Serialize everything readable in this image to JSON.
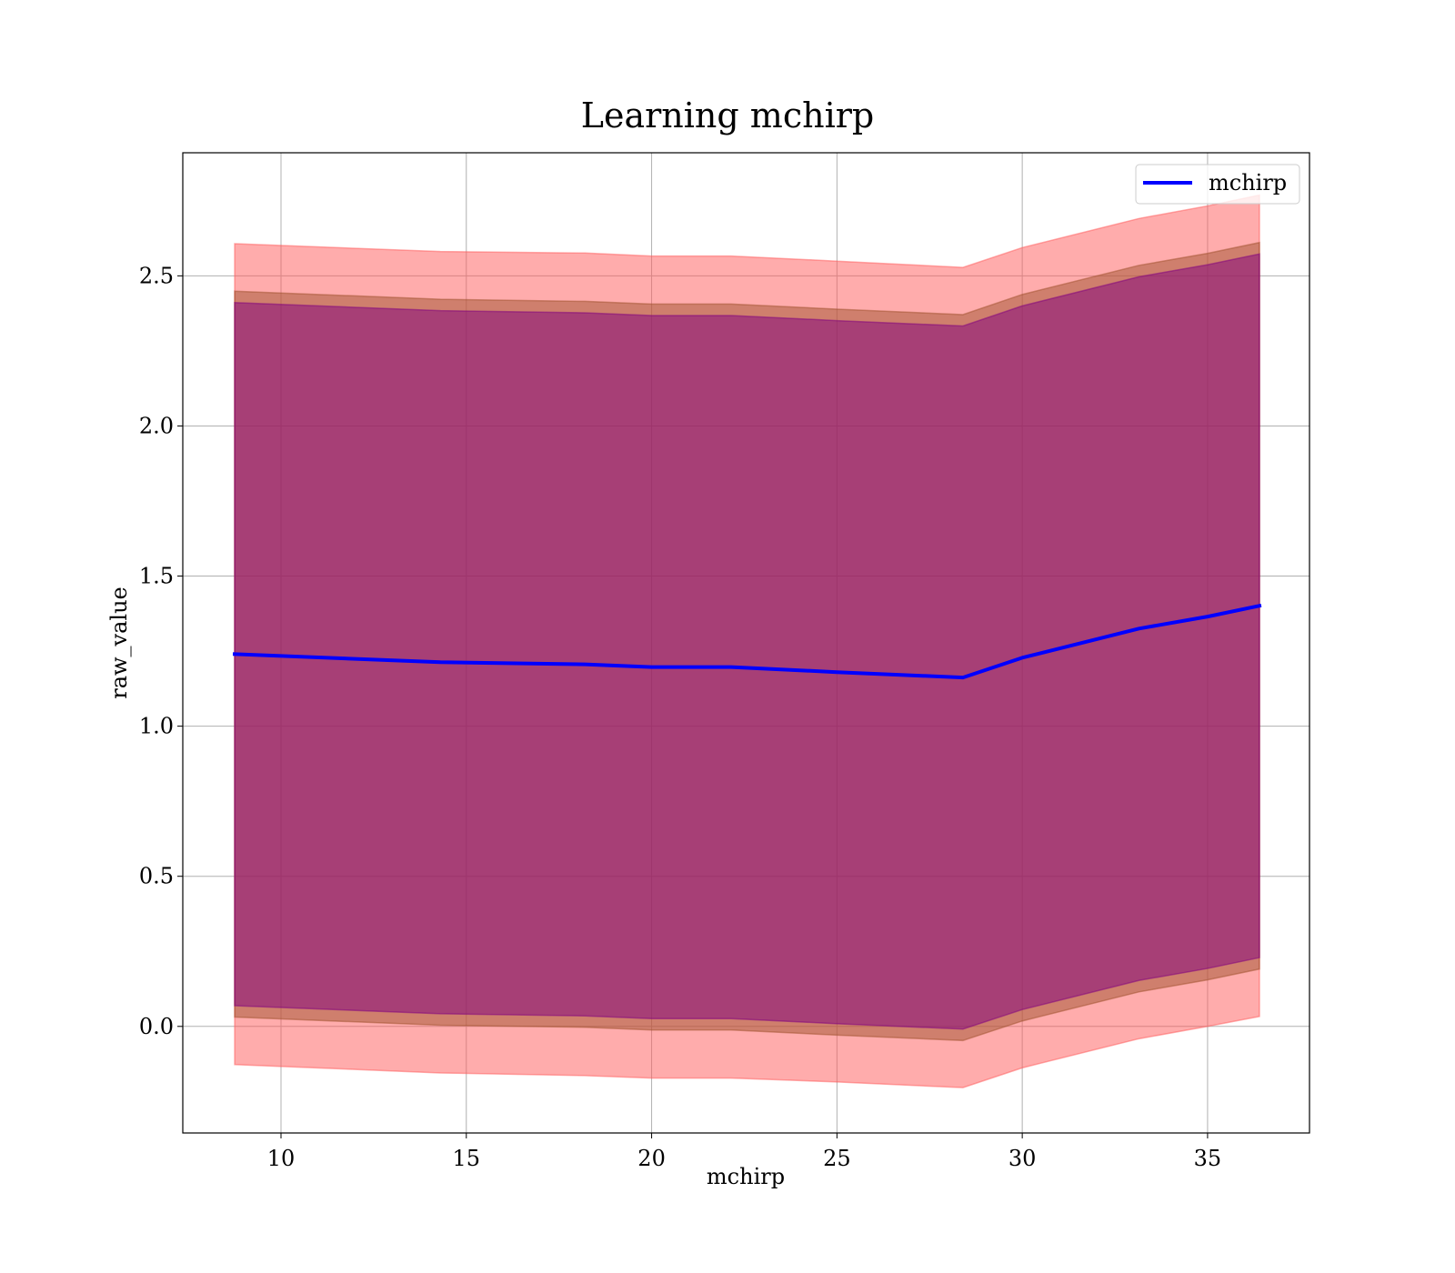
{
  "chart_data": {
    "type": "line",
    "title": "Learning mchirp",
    "xlabel": "mchirp",
    "ylabel": "raw_value",
    "xlim": [
      7.35,
      37.75
    ],
    "ylim": [
      -0.355,
      2.91
    ],
    "xticks": [
      10,
      15,
      20,
      25,
      30,
      35
    ],
    "xtick_labels": [
      "10",
      "15",
      "20",
      "25",
      "30",
      "35"
    ],
    "yticks": [
      0.0,
      0.5,
      1.0,
      1.5,
      2.0,
      2.5
    ],
    "ytick_labels": [
      "0.0",
      "0.5",
      "1.0",
      "1.5",
      "2.0",
      "2.5"
    ],
    "grid": true,
    "legend_position": "top-right",
    "x": [
      8.75,
      14.3,
      18.2,
      20.0,
      22.15,
      25.0,
      28.4,
      30.0,
      33.15,
      35.0,
      36.4
    ],
    "series": [
      {
        "name": "mchirp",
        "color": "#0000ff",
        "values": [
          1.24,
          1.213,
          1.206,
          1.197,
          1.197,
          1.18,
          1.162,
          1.228,
          1.325,
          1.365,
          1.401
        ]
      }
    ],
    "bands": [
      {
        "color": "#ff5a5a",
        "lower": [
          -0.127,
          -0.155,
          -0.164,
          -0.172,
          -0.172,
          -0.185,
          -0.204,
          -0.138,
          -0.041,
          0.0,
          0.033
        ],
        "upper": [
          2.607,
          2.581,
          2.576,
          2.566,
          2.566,
          2.549,
          2.528,
          2.594,
          2.691,
          2.733,
          2.769
        ]
      },
      {
        "color": "#a0522d",
        "lower": [
          0.031,
          0.004,
          -0.003,
          -0.012,
          -0.012,
          -0.029,
          -0.047,
          0.018,
          0.115,
          0.155,
          0.191
        ],
        "upper": [
          2.449,
          2.422,
          2.415,
          2.406,
          2.406,
          2.389,
          2.371,
          2.438,
          2.535,
          2.575,
          2.611
        ]
      },
      {
        "color": "#800080",
        "lower": [
          0.069,
          0.042,
          0.035,
          0.026,
          0.026,
          0.009,
          -0.009,
          0.056,
          0.153,
          0.193,
          0.229
        ],
        "upper": [
          2.411,
          2.384,
          2.377,
          2.368,
          2.368,
          2.351,
          2.333,
          2.4,
          2.497,
          2.537,
          2.573
        ]
      }
    ]
  }
}
